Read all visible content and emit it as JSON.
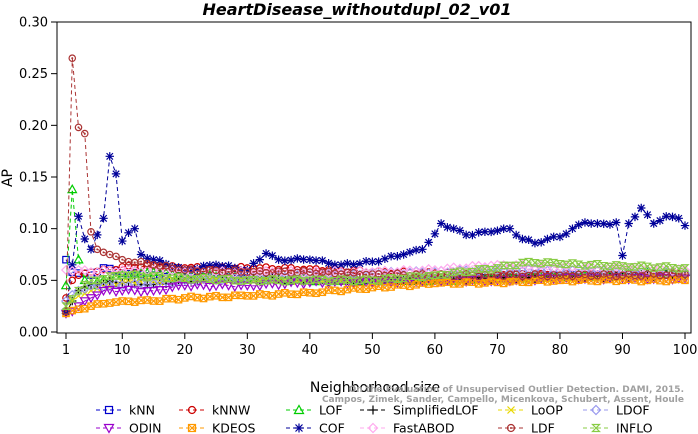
{
  "chart_data": {
    "type": "line",
    "title": "HeartDisease_withoutdupl_02_v01",
    "xlabel": "Neighborhood size",
    "ylabel": "AP",
    "xlim": [
      1,
      100
    ],
    "ylim": [
      0.0,
      0.3
    ],
    "xticks": [
      "1",
      "10",
      "20",
      "30",
      "40",
      "50",
      "60",
      "70",
      "80",
      "90",
      "100"
    ],
    "yticks": [
      "0.00",
      "0.05",
      "0.10",
      "0.15",
      "0.20",
      "0.25",
      "0.30"
    ],
    "grid": false,
    "legend_position": "bottom",
    "credit": "Campos, Zimek, Sander, Campello, Micenkova, Schubert, Assent, Houle",
    "credit_line1": "On the Evaluation of Unsupervised Outlier Detection. DAMI, 2015.",
    "series": [
      {
        "name": "kNN",
        "color": "#0000cc",
        "marker": "square",
        "anchors": [
          [
            1,
            0.07
          ],
          [
            2,
            0.058
          ],
          [
            3,
            0.057
          ],
          [
            5,
            0.055
          ],
          [
            7,
            0.062
          ],
          [
            10,
            0.057
          ],
          [
            15,
            0.055
          ],
          [
            20,
            0.053
          ],
          [
            30,
            0.052
          ],
          [
            40,
            0.05
          ],
          [
            50,
            0.05
          ],
          [
            60,
            0.051
          ],
          [
            70,
            0.052
          ],
          [
            80,
            0.054
          ],
          [
            90,
            0.054
          ],
          [
            100,
            0.056
          ]
        ]
      },
      {
        "name": "kNNW",
        "color": "#cc0000",
        "marker": "circle",
        "anchors": [
          [
            1,
            0.033
          ],
          [
            2,
            0.05
          ],
          [
            3,
            0.055
          ],
          [
            5,
            0.058
          ],
          [
            8,
            0.06
          ],
          [
            10,
            0.063
          ],
          [
            15,
            0.064
          ],
          [
            20,
            0.062
          ],
          [
            30,
            0.062
          ],
          [
            40,
            0.061
          ],
          [
            50,
            0.058
          ],
          [
            60,
            0.057
          ],
          [
            70,
            0.056
          ],
          [
            80,
            0.055
          ],
          [
            90,
            0.055
          ],
          [
            100,
            0.056
          ]
        ]
      },
      {
        "name": "LOF",
        "color": "#00cc00",
        "marker": "triangle",
        "anchors": [
          [
            1,
            0.045
          ],
          [
            2,
            0.138
          ],
          [
            3,
            0.07
          ],
          [
            4,
            0.05
          ],
          [
            5,
            0.045
          ],
          [
            7,
            0.05
          ],
          [
            10,
            0.055
          ],
          [
            15,
            0.058
          ],
          [
            20,
            0.055
          ],
          [
            30,
            0.052
          ],
          [
            40,
            0.05
          ],
          [
            50,
            0.05
          ],
          [
            60,
            0.05
          ],
          [
            70,
            0.052
          ],
          [
            80,
            0.054
          ],
          [
            90,
            0.055
          ],
          [
            100,
            0.058
          ]
        ]
      },
      {
        "name": "SimplifiedLOF",
        "color": "#000000",
        "marker": "plus",
        "anchors": [
          [
            1,
            0.018
          ],
          [
            2,
            0.03
          ],
          [
            3,
            0.04
          ],
          [
            5,
            0.045
          ],
          [
            7,
            0.048
          ],
          [
            10,
            0.048
          ],
          [
            15,
            0.046
          ],
          [
            20,
            0.05
          ],
          [
            30,
            0.052
          ],
          [
            40,
            0.05
          ],
          [
            50,
            0.05
          ],
          [
            60,
            0.05
          ],
          [
            70,
            0.052
          ],
          [
            80,
            0.052
          ],
          [
            90,
            0.054
          ],
          [
            100,
            0.055
          ]
        ]
      },
      {
        "name": "LoOP",
        "color": "#e8d800",
        "marker": "cross",
        "anchors": [
          [
            1,
            0.025
          ],
          [
            3,
            0.035
          ],
          [
            5,
            0.04
          ],
          [
            10,
            0.048
          ],
          [
            20,
            0.05
          ],
          [
            30,
            0.05
          ],
          [
            40,
            0.05
          ],
          [
            50,
            0.05
          ],
          [
            60,
            0.05
          ],
          [
            70,
            0.05
          ],
          [
            80,
            0.052
          ],
          [
            90,
            0.053
          ],
          [
            100,
            0.055
          ]
        ]
      },
      {
        "name": "LDOF",
        "color": "#9999ee",
        "marker": "diamond",
        "anchors": [
          [
            1,
            0.03
          ],
          [
            3,
            0.04
          ],
          [
            5,
            0.045
          ],
          [
            10,
            0.045
          ],
          [
            20,
            0.05
          ],
          [
            30,
            0.052
          ],
          [
            40,
            0.055
          ],
          [
            50,
            0.057
          ],
          [
            60,
            0.058
          ],
          [
            70,
            0.06
          ],
          [
            80,
            0.06
          ],
          [
            90,
            0.058
          ],
          [
            100,
            0.057
          ]
        ]
      },
      {
        "name": "ODIN",
        "color": "#9900cc",
        "marker": "triangle-down",
        "anchors": [
          [
            1,
            0.018
          ],
          [
            2,
            0.02
          ],
          [
            4,
            0.03
          ],
          [
            7,
            0.04
          ],
          [
            10,
            0.04
          ],
          [
            15,
            0.04
          ],
          [
            20,
            0.045
          ],
          [
            30,
            0.045
          ],
          [
            40,
            0.048
          ],
          [
            50,
            0.048
          ],
          [
            60,
            0.05
          ],
          [
            70,
            0.05
          ],
          [
            80,
            0.052
          ],
          [
            90,
            0.052
          ],
          [
            100,
            0.052
          ]
        ]
      },
      {
        "name": "KDEOS",
        "color": "#ff9900",
        "marker": "square-x",
        "anchors": [
          [
            1,
            0.018
          ],
          [
            3,
            0.022
          ],
          [
            5,
            0.025
          ],
          [
            8,
            0.028
          ],
          [
            10,
            0.03
          ],
          [
            15,
            0.03
          ],
          [
            20,
            0.033
          ],
          [
            30,
            0.035
          ],
          [
            40,
            0.038
          ],
          [
            50,
            0.043
          ],
          [
            60,
            0.047
          ],
          [
            70,
            0.048
          ],
          [
            80,
            0.05
          ],
          [
            90,
            0.05
          ],
          [
            100,
            0.05
          ]
        ]
      },
      {
        "name": "COF",
        "color": "#000099",
        "marker": "star",
        "anchors": [
          [
            1,
            0.02
          ],
          [
            2,
            0.065
          ],
          [
            3,
            0.112
          ],
          [
            4,
            0.09
          ],
          [
            5,
            0.08
          ],
          [
            6,
            0.094
          ],
          [
            7,
            0.11
          ],
          [
            8,
            0.17
          ],
          [
            9,
            0.153
          ],
          [
            10,
            0.088
          ],
          [
            11,
            0.096
          ],
          [
            12,
            0.1
          ],
          [
            13,
            0.075
          ],
          [
            15,
            0.07
          ],
          [
            20,
            0.06
          ],
          [
            25,
            0.065
          ],
          [
            30,
            0.06
          ],
          [
            33,
            0.076
          ],
          [
            35,
            0.07
          ],
          [
            40,
            0.07
          ],
          [
            45,
            0.065
          ],
          [
            50,
            0.068
          ],
          [
            55,
            0.075
          ],
          [
            58,
            0.08
          ],
          [
            60,
            0.095
          ],
          [
            61,
            0.105
          ],
          [
            63,
            0.1
          ],
          [
            65,
            0.094
          ],
          [
            68,
            0.097
          ],
          [
            70,
            0.098
          ],
          [
            72,
            0.1
          ],
          [
            74,
            0.09
          ],
          [
            76,
            0.086
          ],
          [
            78,
            0.09
          ],
          [
            80,
            0.092
          ],
          [
            82,
            0.1
          ],
          [
            84,
            0.106
          ],
          [
            86,
            0.105
          ],
          [
            88,
            0.104
          ],
          [
            89,
            0.106
          ],
          [
            90,
            0.074
          ],
          [
            91,
            0.105
          ],
          [
            93,
            0.12
          ],
          [
            95,
            0.105
          ],
          [
            97,
            0.112
          ],
          [
            99,
            0.11
          ],
          [
            100,
            0.103
          ]
        ]
      },
      {
        "name": "FastABOD",
        "color": "#ffaaee",
        "marker": "diamond",
        "anchors": [
          [
            1,
            0.06
          ],
          [
            3,
            0.06
          ],
          [
            5,
            0.058
          ],
          [
            10,
            0.06
          ],
          [
            20,
            0.058
          ],
          [
            30,
            0.058
          ],
          [
            40,
            0.058
          ],
          [
            50,
            0.058
          ],
          [
            60,
            0.06
          ],
          [
            70,
            0.065
          ],
          [
            80,
            0.063
          ],
          [
            90,
            0.062
          ],
          [
            100,
            0.06
          ]
        ]
      },
      {
        "name": "LDF",
        "color": "#aa3333",
        "marker": "circle-dot",
        "anchors": [
          [
            1,
            0.02
          ],
          [
            2,
            0.265
          ],
          [
            3,
            0.198
          ],
          [
            4,
            0.192
          ],
          [
            5,
            0.097
          ],
          [
            6,
            0.08
          ],
          [
            8,
            0.075
          ],
          [
            10,
            0.07
          ],
          [
            15,
            0.065
          ],
          [
            20,
            0.06
          ],
          [
            30,
            0.058
          ],
          [
            40,
            0.058
          ],
          [
            50,
            0.056
          ],
          [
            60,
            0.055
          ],
          [
            70,
            0.055
          ],
          [
            80,
            0.055
          ],
          [
            90,
            0.055
          ],
          [
            100,
            0.056
          ]
        ]
      },
      {
        "name": "INFLO",
        "color": "#88cc44",
        "marker": "hourglass",
        "anchors": [
          [
            1,
            0.025
          ],
          [
            3,
            0.04
          ],
          [
            5,
            0.05
          ],
          [
            10,
            0.055
          ],
          [
            20,
            0.052
          ],
          [
            30,
            0.05
          ],
          [
            40,
            0.05
          ],
          [
            50,
            0.05
          ],
          [
            60,
            0.055
          ],
          [
            70,
            0.062
          ],
          [
            75,
            0.068
          ],
          [
            80,
            0.066
          ],
          [
            90,
            0.064
          ],
          [
            100,
            0.062
          ]
        ]
      }
    ]
  },
  "legend_rows": [
    [
      "kNN",
      "kNNW",
      "LOF",
      "SimplifiedLOF",
      "LoOP",
      "LDOF"
    ],
    [
      "ODIN",
      "KDEOS",
      "COF",
      "FastABOD",
      "LDF",
      "INFLO"
    ]
  ]
}
